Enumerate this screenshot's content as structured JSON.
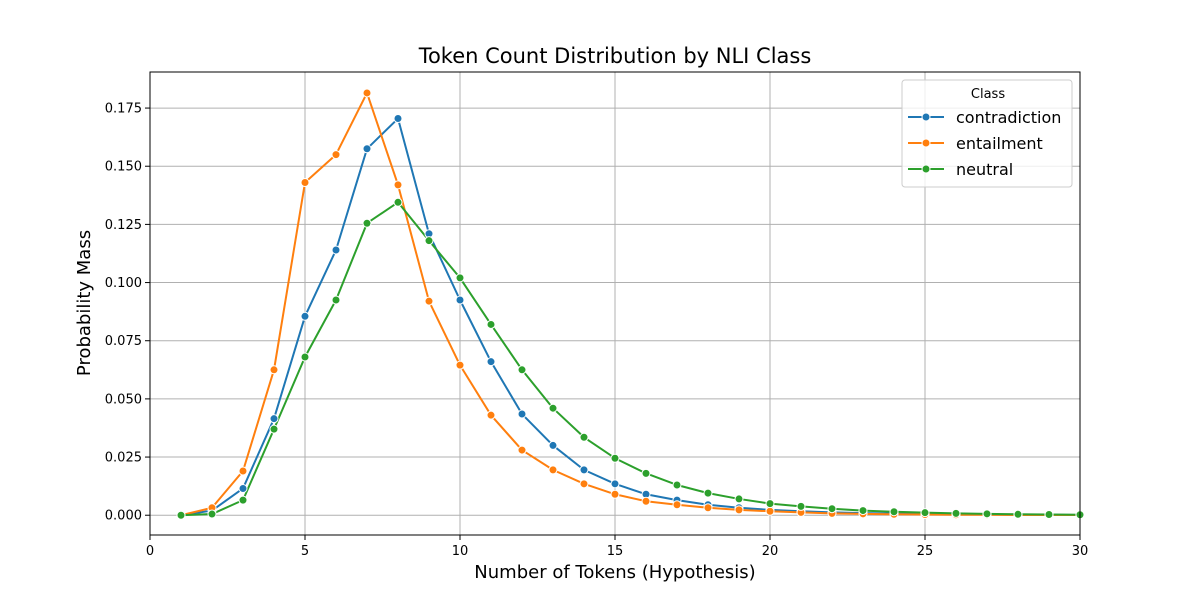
{
  "chart_data": {
    "type": "line",
    "title": "Token Count Distribution by NLI Class",
    "xlabel": "Number of Tokens (Hypothesis)",
    "ylabel": "Probability Mass",
    "xlim": [
      0,
      30
    ],
    "ylim": [
      -0.0085,
      0.1905
    ],
    "xticks": [
      0,
      5,
      10,
      15,
      20,
      25,
      30
    ],
    "xtick_labels": [
      "0",
      "5",
      "10",
      "15",
      "20",
      "25",
      "30"
    ],
    "yticks": [
      0.0,
      0.025,
      0.05,
      0.075,
      0.1,
      0.125,
      0.15,
      0.175
    ],
    "ytick_labels": [
      "0.000",
      "0.025",
      "0.050",
      "0.075",
      "0.100",
      "0.125",
      "0.150",
      "0.175"
    ],
    "grid": true,
    "legend": {
      "title": "Class",
      "placement": "top-right"
    },
    "x": [
      1,
      2,
      3,
      4,
      5,
      6,
      7,
      8,
      9,
      10,
      11,
      12,
      13,
      14,
      15,
      16,
      17,
      18,
      19,
      20,
      21,
      22,
      23,
      24,
      25,
      26,
      27,
      28,
      29,
      30
    ],
    "series": [
      {
        "name": "contradiction",
        "color": "#1f77b4",
        "values": [
          0.0,
          0.002,
          0.0115,
          0.0415,
          0.0855,
          0.114,
          0.1575,
          0.1705,
          0.121,
          0.0925,
          0.066,
          0.0435,
          0.03,
          0.0195,
          0.0135,
          0.009,
          0.0065,
          0.0045,
          0.0032,
          0.0023,
          0.0017,
          0.0012,
          0.0009,
          0.0007,
          0.0005,
          0.0004,
          0.0003,
          0.0002,
          0.0002,
          0.0001
        ]
      },
      {
        "name": "entailment",
        "color": "#ff7f0e",
        "values": [
          0.0,
          0.0032,
          0.019,
          0.0625,
          0.143,
          0.155,
          0.1815,
          0.142,
          0.092,
          0.0645,
          0.043,
          0.028,
          0.0195,
          0.0135,
          0.009,
          0.006,
          0.0045,
          0.0032,
          0.0023,
          0.0017,
          0.0012,
          0.0008,
          0.0006,
          0.0004,
          0.0003,
          0.0002,
          0.0002,
          0.0001,
          0.0001,
          0.0001
        ]
      },
      {
        "name": "neutral",
        "color": "#2ca02c",
        "values": [
          0.0,
          0.0005,
          0.0065,
          0.037,
          0.068,
          0.0925,
          0.1255,
          0.1345,
          0.118,
          0.102,
          0.082,
          0.0625,
          0.046,
          0.0335,
          0.0245,
          0.018,
          0.013,
          0.0095,
          0.007,
          0.005,
          0.0038,
          0.0028,
          0.002,
          0.0015,
          0.0011,
          0.0008,
          0.0006,
          0.0004,
          0.0003,
          0.0002
        ]
      }
    ]
  }
}
